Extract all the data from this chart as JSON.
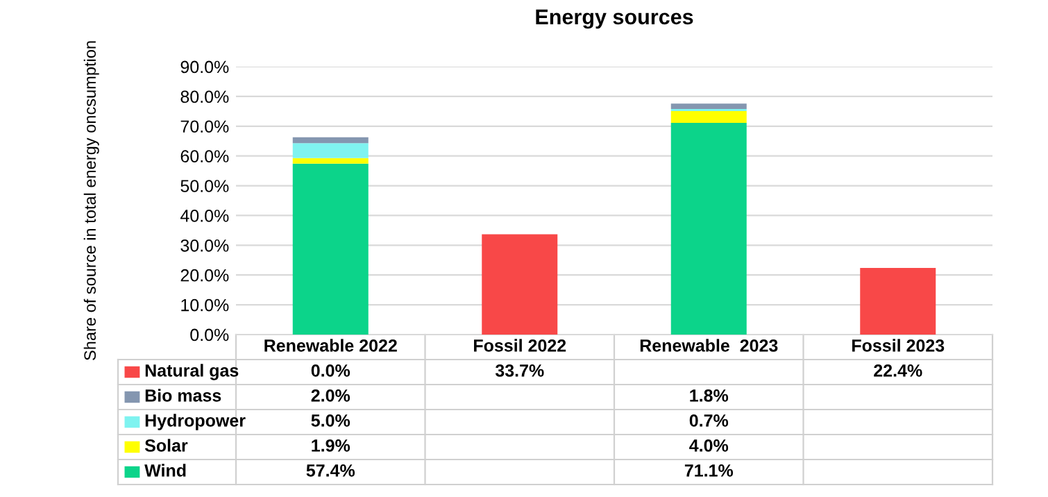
{
  "chart_data": {
    "type": "bar",
    "title": "Energy sources",
    "ylabel": "Share of source in total energy oncsumption",
    "stacked": true,
    "grid": "y",
    "legend": "bottom",
    "categories": [
      "Renewable 2022",
      "Fossil 2022",
      "Renewable  2023",
      "Fossil 2023"
    ],
    "series": [
      {
        "name": "Wind",
        "color": "#0cd48a",
        "values": [
          57.4,
          null,
          71.1,
          null
        ],
        "value_labels": [
          "57.4%",
          null,
          "71.1%",
          null
        ]
      },
      {
        "name": "Solar",
        "color": "#ffff00",
        "values": [
          1.9,
          null,
          4.0,
          null
        ],
        "value_labels": [
          "1.9%",
          null,
          "4.0%",
          null
        ]
      },
      {
        "name": "Hydropower",
        "color": "#7ff3f0",
        "values": [
          5.0,
          null,
          0.7,
          null
        ],
        "value_labels": [
          "5.0%",
          null,
          "0.7%",
          null
        ]
      },
      {
        "name": "Bio mass",
        "color": "#8496b0",
        "values": [
          2.0,
          null,
          1.8,
          null
        ],
        "value_labels": [
          "2.0%",
          null,
          "1.8%",
          null
        ]
      },
      {
        "name": "Natural gas",
        "color": "#f84848",
        "values": [
          0.0,
          33.7,
          null,
          22.4
        ],
        "value_labels": [
          "0.0%",
          "33.7%",
          null,
          "22.4%"
        ]
      }
    ],
    "ylim": [
      0,
      90
    ],
    "yticks": [
      {
        "value": 0,
        "label": "0.0%"
      },
      {
        "value": 10,
        "label": "10.0%"
      },
      {
        "value": 20,
        "label": "20.0%"
      },
      {
        "value": 30,
        "label": "30.0%"
      },
      {
        "value": 40,
        "label": "40.0%"
      },
      {
        "value": 50,
        "label": "50.0%"
      },
      {
        "value": 60,
        "label": "60.0%"
      },
      {
        "value": 70,
        "label": "70.0%"
      },
      {
        "value": 80,
        "label": "80.0%"
      },
      {
        "value": 90,
        "label": "90.0%"
      }
    ]
  }
}
